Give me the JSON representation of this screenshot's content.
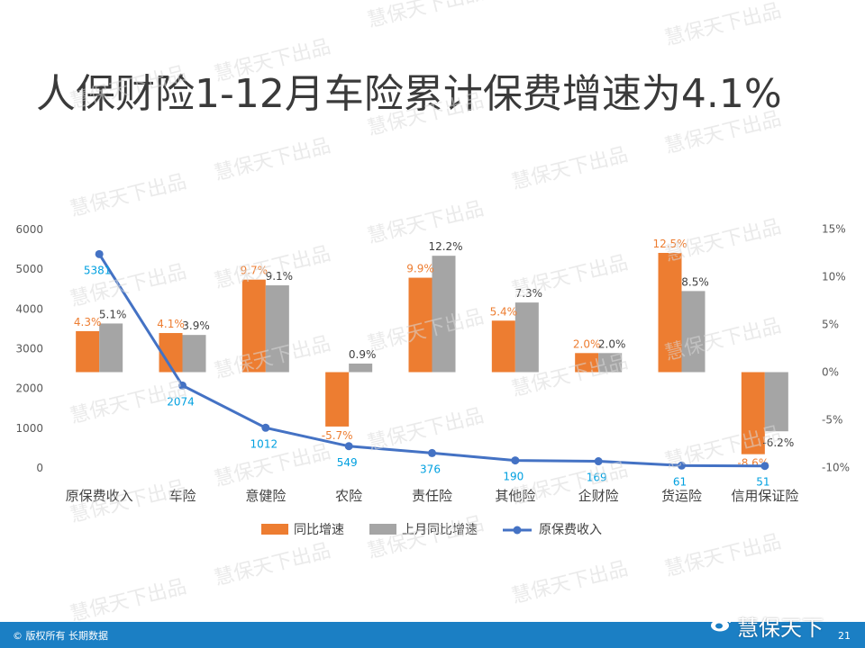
{
  "title": "人保财险1-12月车险累计保费增速为4.1%",
  "footer": {
    "copyright": "© 版权所有 长期数据",
    "brand": "慧保天下",
    "page": "21"
  },
  "watermark": "慧保天下出品",
  "colors": {
    "yoy": "#ed7d31",
    "prev_month": "#a5a5a5",
    "premium_line": "#4472c4",
    "premium_label": "#00a0e0",
    "yoy_label": "#ed7d31",
    "prev_label": "#404040",
    "footer": "#1b7fc4"
  },
  "chart_data": {
    "type": "bar",
    "categories": [
      "原保费收入",
      "车险",
      "意健险",
      "农险",
      "责任险",
      "其他险",
      "企财险",
      "货运险",
      "信用保证险"
    ],
    "series": [
      {
        "name": "同比增速",
        "type": "bar",
        "axis": "right",
        "values": [
          4.3,
          4.1,
          9.7,
          -5.7,
          9.9,
          5.4,
          2.0,
          12.5,
          -8.6
        ],
        "labels": [
          "4.3%",
          "4.1%",
          "9.7%",
          "-5.7%",
          "9.9%",
          "5.4%",
          "2.0%",
          "12.5%",
          "-8.6%"
        ]
      },
      {
        "name": "上月同比增速",
        "type": "bar",
        "axis": "right",
        "values": [
          5.1,
          3.9,
          9.1,
          0.9,
          12.2,
          7.3,
          2.0,
          8.5,
          -6.2
        ],
        "labels": [
          "5.1%",
          "3.9%",
          "9.1%",
          "0.9%",
          "12.2%",
          "7.3%",
          "2.0%",
          "8.5%",
          "-6.2%"
        ]
      },
      {
        "name": "原保费收入",
        "type": "line",
        "axis": "left",
        "values": [
          5381,
          2074,
          1012,
          549,
          376,
          190,
          169,
          61,
          51
        ],
        "labels": [
          "5381",
          "2074",
          "1012",
          "549",
          "376",
          "190",
          "169",
          "61",
          "51"
        ]
      }
    ],
    "left_axis": {
      "min": 0,
      "max": 6000,
      "ticks": [
        "0",
        "1000",
        "2000",
        "3000",
        "4000",
        "5000",
        "6000"
      ]
    },
    "right_axis": {
      "min": -10,
      "max": 15,
      "ticks": [
        "-10%",
        "-5%",
        "0%",
        "5%",
        "10%",
        "15%"
      ]
    },
    "grid": false,
    "legend": "bottom"
  }
}
